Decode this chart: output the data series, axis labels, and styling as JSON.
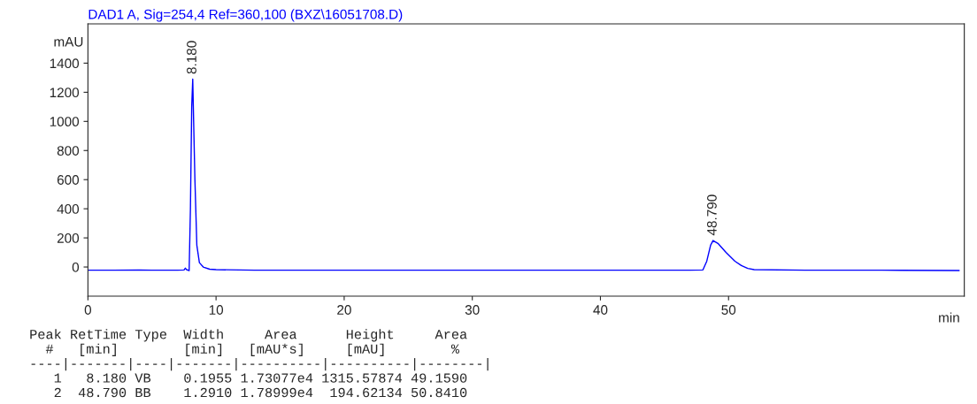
{
  "chart_data": {
    "type": "line",
    "title": "DAD1 A, Sig=254,4 Ref=360,100 (BXZ\\16051708.D)",
    "ylabel": "mAU",
    "xlabel": "min",
    "x": [
      0,
      2,
      4,
      5,
      7,
      7.5,
      7.6,
      7.7,
      7.9,
      8.0,
      8.1,
      8.18,
      8.25,
      8.35,
      8.5,
      8.7,
      9.0,
      9.5,
      10,
      13,
      20,
      30,
      40,
      47,
      48,
      48.3,
      48.6,
      48.79,
      49.2,
      49.8,
      50.5,
      51,
      51.5,
      52,
      56,
      62,
      68
    ],
    "series": [
      {
        "color": "#0000ff",
        "values": [
          -22,
          -22,
          -21,
          -22,
          -22,
          -20,
          -8,
          -18,
          -25,
          400,
          1100,
          1290,
          1000,
          600,
          150,
          30,
          0,
          -15,
          -18,
          -22,
          -22,
          -22,
          -22,
          -22,
          -20,
          40,
          150,
          182,
          160,
          100,
          40,
          10,
          -10,
          -18,
          -22,
          -22,
          -24
        ]
      }
    ],
    "xlim": [
      0,
      68.4
    ],
    "ylim": [
      -200,
      1670
    ],
    "xticks": [
      0,
      10,
      20,
      30,
      40,
      50
    ],
    "yticks": [
      0,
      200,
      400,
      600,
      800,
      1000,
      1200,
      1400
    ],
    "grid": false,
    "legend": false,
    "annotations": [
      {
        "text": "8.180",
        "x": 8.18,
        "y": 1290
      },
      {
        "text": "48.790",
        "x": 48.79,
        "y": 182
      },
      "Peak RetTime Type  Width     Area      Height     Area  ",
      "  #   [min]        [min]   [mAU*s]     [mAU]        %   ",
      "----|-------|----|-------|----------|----------|--------|",
      "   1   8.180 VB    0.1955 1.73077e4 1315.57874 49.1590",
      "   2  48.790 BB    1.2910 1.78999e4  194.62134 50.8410"
    ]
  }
}
